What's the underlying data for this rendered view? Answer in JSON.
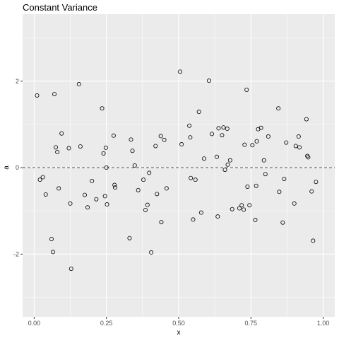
{
  "chart_data": {
    "type": "scatter",
    "title": "Constant Variance",
    "xlabel": "x",
    "ylabel": "a",
    "xlim": [
      -0.04,
      1.04
    ],
    "ylim": [
      -3.45,
      3.55
    ],
    "x_ticks": [
      0,
      0.25,
      0.5,
      0.75,
      1
    ],
    "x_tick_labels": [
      "0.00",
      "0.25",
      "0.50",
      "0.75",
      "1.00"
    ],
    "y_ticks": [
      -2,
      0,
      2
    ],
    "y_tick_labels": [
      "-2",
      "0",
      "2"
    ],
    "reference_line": {
      "y": 0,
      "style": "dashed"
    },
    "grid": true,
    "colors": {
      "panel": "#ebebeb",
      "grid": "#ffffff",
      "points": "#000000",
      "reference_line": "#555555"
    },
    "points": [
      {
        "x": 0.01,
        "y": 1.67
      },
      {
        "x": 0.02,
        "y": -0.28
      },
      {
        "x": 0.03,
        "y": -0.22
      },
      {
        "x": 0.04,
        "y": -0.62
      },
      {
        "x": 0.06,
        "y": -1.65
      },
      {
        "x": 0.065,
        "y": -1.95
      },
      {
        "x": 0.07,
        "y": 1.7
      },
      {
        "x": 0.075,
        "y": 0.47
      },
      {
        "x": 0.08,
        "y": 0.36
      },
      {
        "x": 0.085,
        "y": -0.48
      },
      {
        "x": 0.095,
        "y": 0.79
      },
      {
        "x": 0.12,
        "y": 0.45
      },
      {
        "x": 0.125,
        "y": -0.83
      },
      {
        "x": 0.128,
        "y": -2.34
      },
      {
        "x": 0.155,
        "y": 1.93
      },
      {
        "x": 0.16,
        "y": 0.49
      },
      {
        "x": 0.175,
        "y": -0.63
      },
      {
        "x": 0.185,
        "y": -0.92
      },
      {
        "x": 0.2,
        "y": -0.31
      },
      {
        "x": 0.215,
        "y": -0.73
      },
      {
        "x": 0.235,
        "y": 1.37
      },
      {
        "x": 0.24,
        "y": 0.33
      },
      {
        "x": 0.245,
        "y": -0.66
      },
      {
        "x": 0.248,
        "y": 0.46
      },
      {
        "x": 0.25,
        "y": 0.0
      },
      {
        "x": 0.252,
        "y": -0.85
      },
      {
        "x": 0.275,
        "y": 0.74
      },
      {
        "x": 0.278,
        "y": -0.4
      },
      {
        "x": 0.28,
        "y": -0.46
      },
      {
        "x": 0.33,
        "y": -1.63
      },
      {
        "x": 0.335,
        "y": 0.65
      },
      {
        "x": 0.34,
        "y": 0.39
      },
      {
        "x": 0.348,
        "y": 0.05
      },
      {
        "x": 0.36,
        "y": -0.52
      },
      {
        "x": 0.378,
        "y": -0.28
      },
      {
        "x": 0.385,
        "y": -0.98
      },
      {
        "x": 0.392,
        "y": -0.86
      },
      {
        "x": 0.398,
        "y": -0.12
      },
      {
        "x": 0.405,
        "y": -1.96
      },
      {
        "x": 0.42,
        "y": 0.5
      },
      {
        "x": 0.425,
        "y": -0.61
      },
      {
        "x": 0.438,
        "y": 0.73
      },
      {
        "x": 0.44,
        "y": -1.26
      },
      {
        "x": 0.45,
        "y": 0.64
      },
      {
        "x": 0.458,
        "y": -0.48
      },
      {
        "x": 0.505,
        "y": 2.22
      },
      {
        "x": 0.51,
        "y": 0.54
      },
      {
        "x": 0.537,
        "y": 0.97
      },
      {
        "x": 0.54,
        "y": 0.7
      },
      {
        "x": 0.542,
        "y": -0.24
      },
      {
        "x": 0.55,
        "y": -1.2
      },
      {
        "x": 0.558,
        "y": -0.28
      },
      {
        "x": 0.57,
        "y": 1.29
      },
      {
        "x": 0.578,
        "y": -1.04
      },
      {
        "x": 0.588,
        "y": 0.21
      },
      {
        "x": 0.605,
        "y": 2.01
      },
      {
        "x": 0.615,
        "y": 0.78
      },
      {
        "x": 0.632,
        "y": 0.25
      },
      {
        "x": 0.635,
        "y": -1.13
      },
      {
        "x": 0.638,
        "y": 0.91
      },
      {
        "x": 0.65,
        "y": 0.75
      },
      {
        "x": 0.655,
        "y": 0.93
      },
      {
        "x": 0.66,
        "y": -0.05
      },
      {
        "x": 0.668,
        "y": 0.9
      },
      {
        "x": 0.67,
        "y": 0.07
      },
      {
        "x": 0.678,
        "y": 0.17
      },
      {
        "x": 0.685,
        "y": -0.96
      },
      {
        "x": 0.71,
        "y": -0.94
      },
      {
        "x": 0.718,
        "y": -0.87
      },
      {
        "x": 0.725,
        "y": -0.97
      },
      {
        "x": 0.728,
        "y": 0.53
      },
      {
        "x": 0.735,
        "y": 1.8
      },
      {
        "x": 0.738,
        "y": -0.44
      },
      {
        "x": 0.745,
        "y": -0.87
      },
      {
        "x": 0.755,
        "y": 0.52
      },
      {
        "x": 0.765,
        "y": -1.21
      },
      {
        "x": 0.768,
        "y": -0.42
      },
      {
        "x": 0.77,
        "y": 0.61
      },
      {
        "x": 0.775,
        "y": 0.89
      },
      {
        "x": 0.785,
        "y": 0.92
      },
      {
        "x": 0.795,
        "y": 0.17
      },
      {
        "x": 0.8,
        "y": -0.15
      },
      {
        "x": 0.81,
        "y": 0.72
      },
      {
        "x": 0.845,
        "y": 1.37
      },
      {
        "x": 0.848,
        "y": -0.56
      },
      {
        "x": 0.86,
        "y": -1.27
      },
      {
        "x": 0.865,
        "y": -0.26
      },
      {
        "x": 0.872,
        "y": 0.58
      },
      {
        "x": 0.9,
        "y": -0.83
      },
      {
        "x": 0.905,
        "y": 0.5
      },
      {
        "x": 0.915,
        "y": 0.72
      },
      {
        "x": 0.918,
        "y": 0.47
      },
      {
        "x": 0.942,
        "y": 1.12
      },
      {
        "x": 0.945,
        "y": 0.27
      },
      {
        "x": 0.948,
        "y": 0.24
      },
      {
        "x": 0.96,
        "y": -0.55
      },
      {
        "x": 0.965,
        "y": -1.69
      },
      {
        "x": 0.975,
        "y": -0.33
      }
    ]
  }
}
